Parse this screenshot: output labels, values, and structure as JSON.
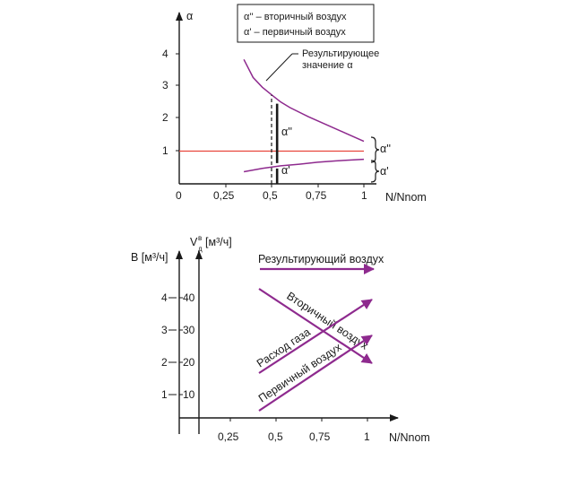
{
  "colors": {
    "purple": "#8e2a8e",
    "red": "#e8463c",
    "axis": "#1a1a1a",
    "box": "#1a1a1a"
  },
  "chart_data": [
    {
      "type": "line",
      "xlabel": "N/Nnom",
      "ylabel": "α",
      "xlim": [
        0,
        1.05
      ],
      "ylim": [
        0,
        4.5
      ],
      "x_ticks": [
        "0",
        "0,25",
        "0,5",
        "0,75",
        "1"
      ],
      "y_ticks": [
        "1",
        "2",
        "3",
        "4"
      ],
      "legend": [
        "α'' – вторичный воздух",
        "α' – первичный воздух"
      ],
      "series": [
        {
          "name": "Результирующее значение α",
          "x": [
            0.35,
            0.4,
            0.45,
            0.5,
            0.55,
            0.6,
            0.7,
            0.8,
            0.9,
            1.0
          ],
          "y": [
            3.8,
            3.25,
            2.95,
            2.72,
            2.5,
            2.33,
            2.05,
            1.8,
            1.55,
            1.3
          ]
        },
        {
          "name": "α'",
          "x": [
            0.35,
            0.45,
            0.55,
            0.65,
            0.75,
            0.85,
            1.0
          ],
          "y": [
            0.37,
            0.47,
            0.55,
            0.6,
            0.66,
            0.7,
            0.75
          ]
        },
        {
          "name": "",
          "x": [
            0,
            1.0
          ],
          "y": [
            1.0,
            1.0
          ]
        }
      ],
      "annotations": {
        "resulting_line1": "Результирующее",
        "resulting_line2": "значение α",
        "alpha2_mid": "α''",
        "alpha1_mid": "α'",
        "alpha2_right": "α''",
        "alpha1_right": "α'"
      },
      "markers": {
        "dashed_x": 0.5,
        "dashed_top": 2.72,
        "solid_x": 0.53,
        "solid_top": 2.45,
        "solid_mid": 0.55
      }
    },
    {
      "type": "line",
      "xlabel": "N/Nnom",
      "ylabel_left": "B [м³/ч]",
      "ylabel_right": "Vᴮд [м³/ч]",
      "x_ticks": [
        "0,25",
        "0,5",
        "0,75",
        "1"
      ],
      "y_ticks_B": [
        "1",
        "2",
        "3",
        "4"
      ],
      "y_ticks_V": [
        "10",
        "20",
        "30",
        "40"
      ],
      "series": [
        {
          "name": "Результирующий воздух",
          "x": [
            0.4,
            1.05
          ],
          "y": [
            4.95,
            4.95
          ]
        },
        {
          "name": "Вторичный воздух",
          "x": [
            0.4,
            1.05
          ],
          "y": [
            4.3,
            1.0
          ]
        },
        {
          "name": "Расход газа",
          "x": [
            0.4,
            1.05
          ],
          "y": [
            1.55,
            4.15
          ]
        },
        {
          "name": "Первичный воздух",
          "x": [
            0.4,
            1.05
          ],
          "y": [
            0.3,
            3.0
          ]
        }
      ]
    }
  ]
}
